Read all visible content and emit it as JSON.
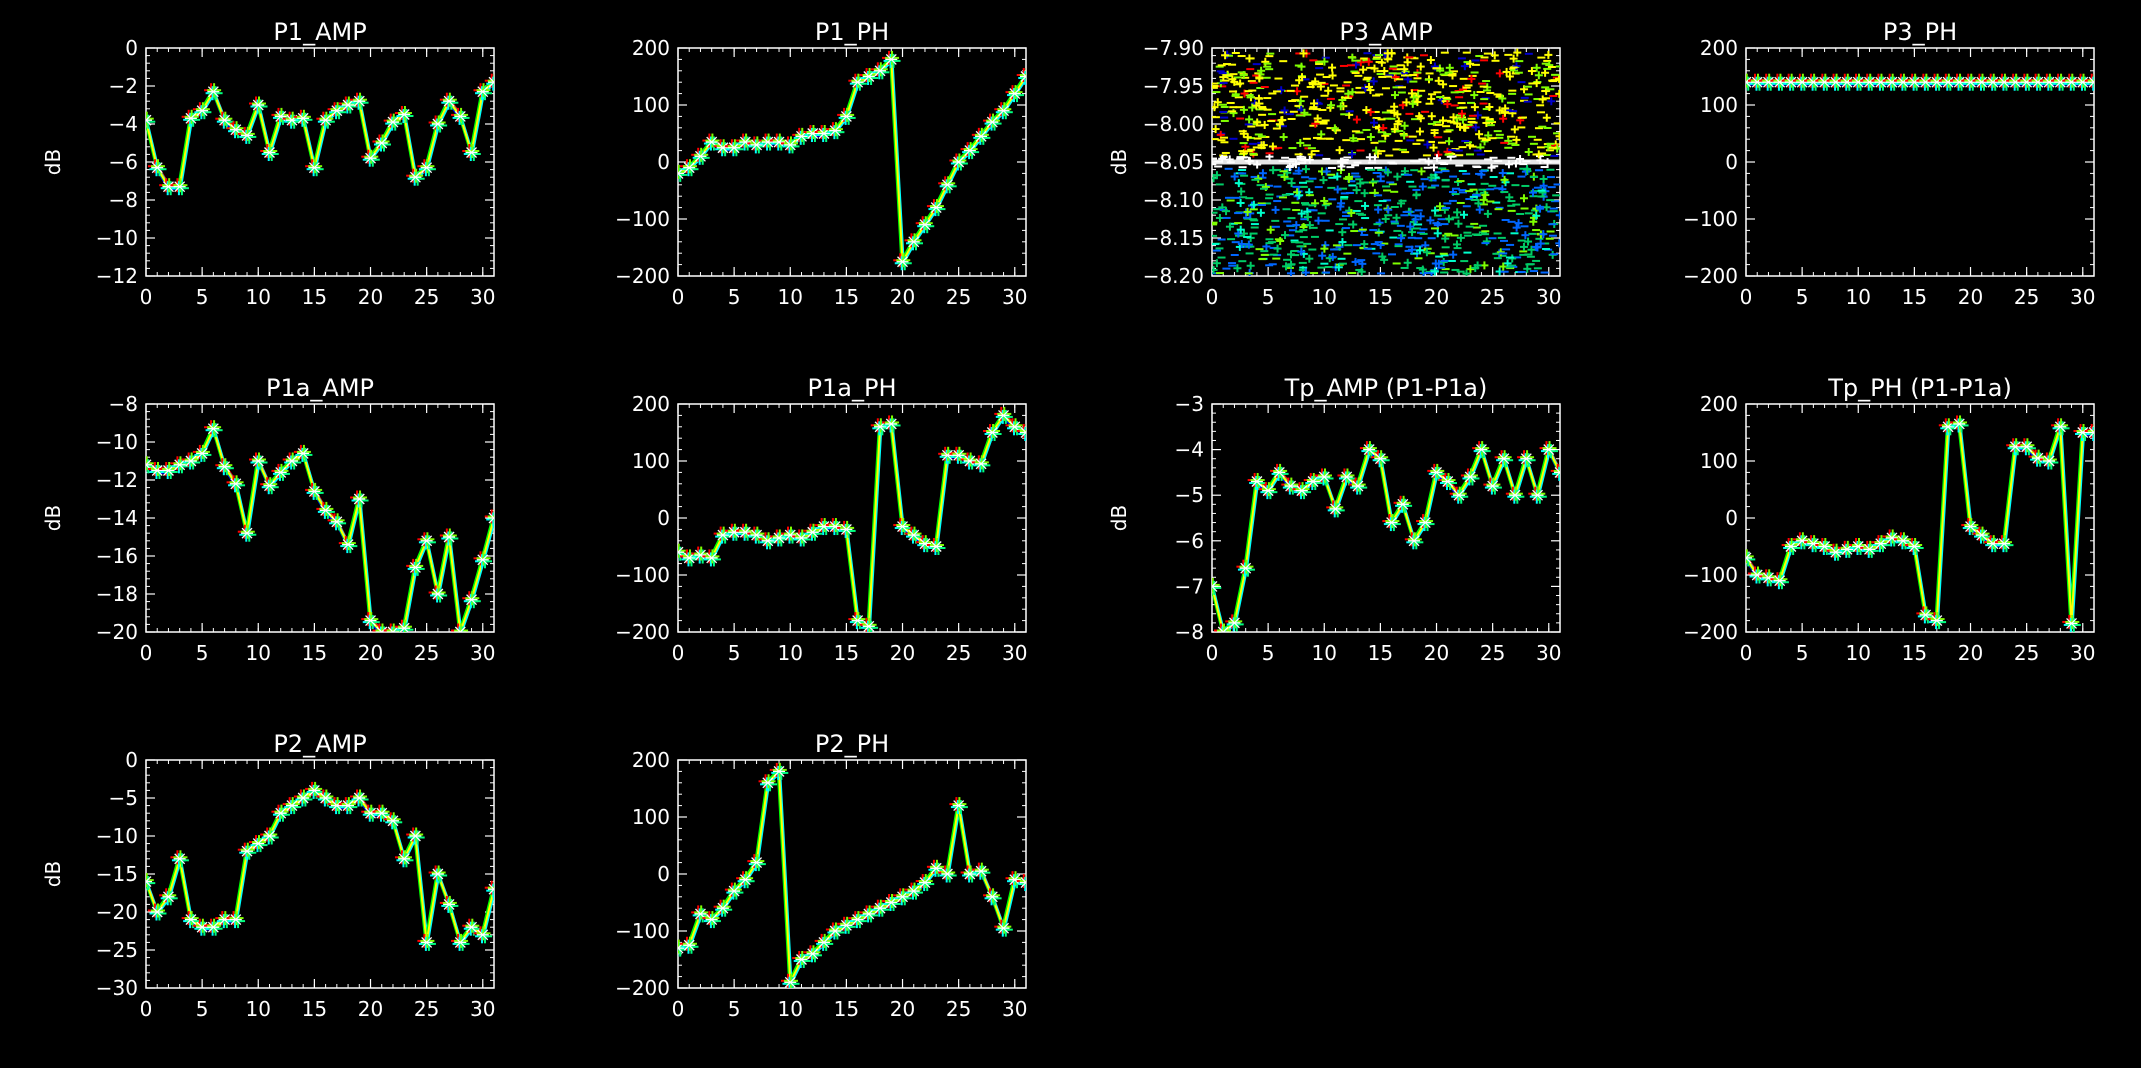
{
  "figure": {
    "background": "#000000",
    "axis_color": "#ffffff",
    "series_palette": [
      "#ff0000",
      "#0000ff",
      "#00ffff",
      "#00ff7f",
      "#7fff00",
      "#ffff00",
      "#ffffff"
    ],
    "trace_color": "#ffff00"
  },
  "chart_data": [
    {
      "type": "line",
      "title": "P1_AMP",
      "ylabel": "dB",
      "xlabel": "",
      "xlim": [
        0,
        31
      ],
      "ylim": [
        -12,
        0
      ],
      "xticks": [
        0,
        5,
        10,
        15,
        20,
        25,
        30
      ],
      "yticks": [
        0,
        -2,
        -4,
        -6,
        -8,
        -10,
        -12
      ],
      "grid": false,
      "x": [
        0,
        1,
        2,
        3,
        4,
        5,
        6,
        7,
        8,
        9,
        10,
        11,
        12,
        13,
        14,
        15,
        16,
        17,
        18,
        19,
        20,
        21,
        22,
        23,
        24,
        25,
        26,
        27,
        28,
        29,
        30,
        31
      ],
      "values": [
        -3.8,
        -6.3,
        -7.3,
        -7.3,
        -3.7,
        -3.3,
        -2.3,
        -3.8,
        -4.3,
        -4.6,
        -3.0,
        -5.5,
        -3.6,
        -3.8,
        -3.7,
        -6.3,
        -3.8,
        -3.3,
        -3.0,
        -2.8,
        -5.8,
        -5.0,
        -3.9,
        -3.5,
        -6.8,
        -6.3,
        -4.0,
        -2.8,
        -3.6,
        -5.5,
        -2.3,
        -1.8
      ]
    },
    {
      "type": "line",
      "title": "P1_PH",
      "ylabel": "",
      "xlabel": "",
      "xlim": [
        0,
        31
      ],
      "ylim": [
        -200,
        200
      ],
      "xticks": [
        0,
        5,
        10,
        15,
        20,
        25,
        30
      ],
      "yticks": [
        200,
        100,
        0,
        -100,
        -200
      ],
      "grid": false,
      "x": [
        0,
        1,
        2,
        3,
        4,
        5,
        6,
        7,
        8,
        9,
        10,
        11,
        12,
        13,
        14,
        15,
        16,
        17,
        18,
        19,
        20,
        21,
        22,
        23,
        24,
        25,
        26,
        27,
        28,
        29,
        30,
        31
      ],
      "values": [
        -20,
        -10,
        10,
        35,
        25,
        25,
        35,
        30,
        35,
        35,
        30,
        45,
        50,
        50,
        55,
        80,
        140,
        150,
        160,
        180,
        -175,
        -140,
        -110,
        -80,
        -40,
        0,
        20,
        45,
        70,
        90,
        120,
        150
      ]
    },
    {
      "type": "line",
      "title": "P3_AMP",
      "ylabel": "dB",
      "xlabel": "",
      "xlim": [
        0,
        31
      ],
      "ylim": [
        -8.2,
        -7.9
      ],
      "xticks": [
        0,
        5,
        10,
        15,
        20,
        25,
        30
      ],
      "yticks": [
        -7.9,
        -7.95,
        -8.0,
        -8.05,
        -8.1,
        -8.15,
        -8.2
      ],
      "grid": false,
      "noise_band": {
        "center": -8.05,
        "spread": 0.15
      }
    },
    {
      "type": "line",
      "title": "P3_PH",
      "ylabel": "",
      "xlabel": "",
      "xlim": [
        0,
        31
      ],
      "ylim": [
        -200,
        200
      ],
      "xticks": [
        0,
        5,
        10,
        15,
        20,
        25,
        30
      ],
      "yticks": [
        200,
        100,
        0,
        -100,
        -200
      ],
      "grid": false,
      "x": [
        0,
        1,
        2,
        3,
        4,
        5,
        6,
        7,
        8,
        9,
        10,
        11,
        12,
        13,
        14,
        15,
        16,
        17,
        18,
        19,
        20,
        21,
        22,
        23,
        24,
        25,
        26,
        27,
        28,
        29,
        30,
        31
      ],
      "values": [
        140,
        140,
        140,
        140,
        140,
        140,
        140,
        140,
        140,
        140,
        140,
        140,
        140,
        140,
        140,
        140,
        140,
        140,
        140,
        140,
        140,
        140,
        140,
        140,
        140,
        140,
        140,
        140,
        140,
        140,
        140,
        140
      ]
    },
    {
      "type": "line",
      "title": "P1a_AMP",
      "ylabel": "dB",
      "xlabel": "",
      "xlim": [
        0,
        31
      ],
      "ylim": [
        -20,
        -8
      ],
      "xticks": [
        0,
        5,
        10,
        15,
        20,
        25,
        30
      ],
      "yticks": [
        -8,
        -10,
        -12,
        -14,
        -16,
        -18,
        -20
      ],
      "grid": false,
      "x": [
        0,
        1,
        2,
        3,
        4,
        5,
        6,
        7,
        8,
        9,
        10,
        11,
        12,
        13,
        14,
        15,
        16,
        17,
        18,
        19,
        20,
        21,
        22,
        23,
        24,
        25,
        26,
        27,
        28,
        29,
        30,
        31
      ],
      "values": [
        -11.2,
        -11.5,
        -11.5,
        -11.2,
        -11.0,
        -10.6,
        -9.3,
        -11.3,
        -12.2,
        -14.8,
        -11.0,
        -12.3,
        -11.6,
        -11.0,
        -10.6,
        -12.6,
        -13.6,
        -14.2,
        -15.4,
        -13.0,
        -19.4,
        -20.0,
        -20.0,
        -19.8,
        -16.6,
        -15.2,
        -18.0,
        -15.0,
        -20.0,
        -18.3,
        -16.2,
        -14.0
      ]
    },
    {
      "type": "line",
      "title": "P1a_PH",
      "ylabel": "",
      "xlabel": "",
      "xlim": [
        0,
        31
      ],
      "ylim": [
        -200,
        200
      ],
      "xticks": [
        0,
        5,
        10,
        15,
        20,
        25,
        30
      ],
      "yticks": [
        200,
        100,
        0,
        -100,
        -200
      ],
      "grid": false,
      "x": [
        0,
        1,
        2,
        3,
        4,
        5,
        6,
        7,
        8,
        9,
        10,
        11,
        12,
        13,
        14,
        15,
        16,
        17,
        18,
        19,
        20,
        21,
        22,
        23,
        24,
        25,
        26,
        27,
        28,
        29,
        30,
        31
      ],
      "values": [
        -60,
        -70,
        -65,
        -70,
        -30,
        -25,
        -25,
        -30,
        -40,
        -35,
        -30,
        -35,
        -25,
        -15,
        -15,
        -20,
        -180,
        -190,
        160,
        165,
        -15,
        -30,
        -45,
        -50,
        110,
        110,
        100,
        95,
        150,
        180,
        160,
        150
      ]
    },
    {
      "type": "line",
      "title": "Tp_AMP (P1-P1a)",
      "ylabel": "dB",
      "xlabel": "",
      "xlim": [
        0,
        31
      ],
      "ylim": [
        -8,
        -3
      ],
      "xticks": [
        0,
        5,
        10,
        15,
        20,
        25,
        30
      ],
      "yticks": [
        -3,
        -4,
        -5,
        -6,
        -7,
        -8
      ],
      "grid": false,
      "x": [
        0,
        1,
        2,
        3,
        4,
        5,
        6,
        7,
        8,
        9,
        10,
        11,
        12,
        13,
        14,
        15,
        16,
        17,
        18,
        19,
        20,
        21,
        22,
        23,
        24,
        25,
        26,
        27,
        28,
        29,
        30,
        31
      ],
      "values": [
        -7.0,
        -8.0,
        -7.8,
        -6.6,
        -4.7,
        -4.9,
        -4.5,
        -4.8,
        -4.9,
        -4.7,
        -4.6,
        -5.3,
        -4.6,
        -4.8,
        -4.0,
        -4.2,
        -5.6,
        -5.2,
        -6.0,
        -5.6,
        -4.5,
        -4.7,
        -5.0,
        -4.6,
        -4.0,
        -4.8,
        -4.2,
        -5.0,
        -4.2,
        -5.0,
        -4.0,
        -4.5
      ]
    },
    {
      "type": "line",
      "title": "Tp_PH (P1-P1a)",
      "ylabel": "",
      "xlabel": "",
      "xlim": [
        0,
        31
      ],
      "ylim": [
        -200,
        200
      ],
      "xticks": [
        0,
        5,
        10,
        15,
        20,
        25,
        30
      ],
      "yticks": [
        200,
        100,
        0,
        -100,
        -200
      ],
      "grid": false,
      "x": [
        0,
        1,
        2,
        3,
        4,
        5,
        6,
        7,
        8,
        9,
        10,
        11,
        12,
        13,
        14,
        15,
        16,
        17,
        18,
        19,
        20,
        21,
        22,
        23,
        24,
        25,
        26,
        27,
        28,
        29,
        30,
        31
      ],
      "values": [
        -70,
        -100,
        -105,
        -110,
        -50,
        -40,
        -45,
        -50,
        -60,
        -55,
        -50,
        -55,
        -45,
        -35,
        -40,
        -50,
        -170,
        -180,
        160,
        165,
        -15,
        -30,
        -45,
        -45,
        125,
        125,
        105,
        100,
        160,
        -185,
        150,
        150
      ]
    },
    {
      "type": "line",
      "title": "P2_AMP",
      "ylabel": "dB",
      "xlabel": "",
      "xlim": [
        0,
        31
      ],
      "ylim": [
        -30,
        0
      ],
      "xticks": [
        0,
        5,
        10,
        15,
        20,
        25,
        30
      ],
      "yticks": [
        0,
        -5,
        -10,
        -15,
        -20,
        -25,
        -30
      ],
      "grid": false,
      "x": [
        0,
        1,
        2,
        3,
        4,
        5,
        6,
        7,
        8,
        9,
        10,
        11,
        12,
        13,
        14,
        15,
        16,
        17,
        18,
        19,
        20,
        21,
        22,
        23,
        24,
        25,
        26,
        27,
        28,
        29,
        30,
        31
      ],
      "values": [
        -16,
        -20,
        -18,
        -13,
        -21,
        -22,
        -22,
        -21,
        -21,
        -12,
        -11,
        -10,
        -7,
        -6,
        -5,
        -4,
        -5,
        -6,
        -6,
        -5,
        -7,
        -7,
        -8,
        -13,
        -10,
        -24,
        -15,
        -19,
        -24,
        -22,
        -23,
        -17
      ]
    },
    {
      "type": "line",
      "title": "P2_PH",
      "ylabel": "",
      "xlabel": "",
      "xlim": [
        0,
        31
      ],
      "ylim": [
        -200,
        200
      ],
      "xticks": [
        0,
        5,
        10,
        15,
        20,
        25,
        30
      ],
      "yticks": [
        200,
        100,
        0,
        -100,
        -200
      ],
      "grid": false,
      "x": [
        0,
        1,
        2,
        3,
        4,
        5,
        6,
        7,
        8,
        9,
        10,
        11,
        12,
        13,
        14,
        15,
        16,
        17,
        18,
        19,
        20,
        21,
        22,
        23,
        24,
        25,
        26,
        27,
        28,
        29,
        30,
        31
      ],
      "values": [
        -130,
        -125,
        -70,
        -80,
        -60,
        -30,
        -10,
        20,
        160,
        180,
        -190,
        -150,
        -140,
        -120,
        -100,
        -90,
        -80,
        -70,
        -60,
        -50,
        -40,
        -30,
        -15,
        10,
        0,
        120,
        0,
        5,
        -40,
        -95,
        -10,
        -15
      ]
    }
  ]
}
